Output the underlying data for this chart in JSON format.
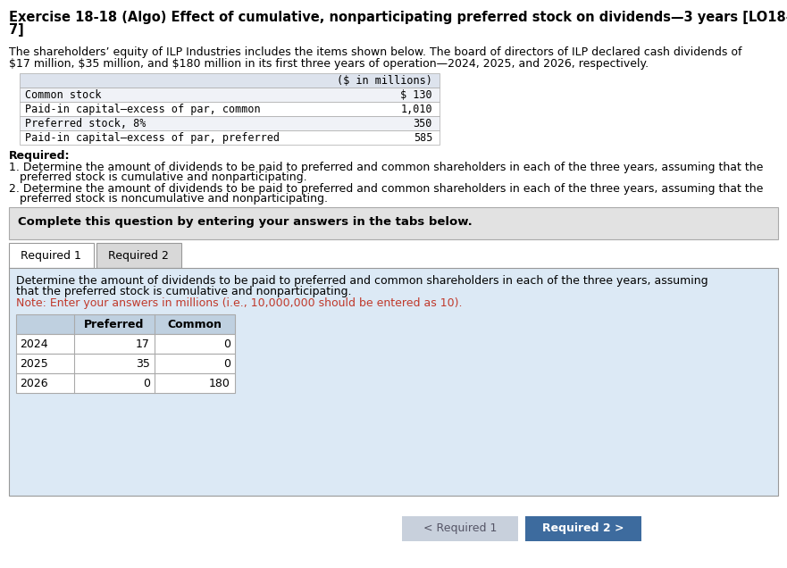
{
  "title_line1": "Exercise 18-18 (Algo) Effect of cumulative, nonparticipating preferred stock on dividends—3 years [LO18-",
  "title_line2": "7]",
  "intro_line1": "The shareholders’ equity of ILP Industries includes the items shown below. The board of directors of ILP declared cash dividends of",
  "intro_line2": "$17 million, $35 million, and $180 million in its first three years of operation—2024, 2025, and 2026, respectively.",
  "equity_header": "($ in millions)",
  "equity_rows": [
    [
      "Common stock",
      "$ 130"
    ],
    [
      "Paid-in capital–excess of par, common",
      "1,010"
    ],
    [
      "Preferred stock, 8%",
      "350"
    ],
    [
      "Paid-in capital–excess of par, preferred",
      "585"
    ]
  ],
  "required_label": "Required:",
  "req1_line1": "1. Determine the amount of dividends to be paid to preferred and common shareholders in each of the three years, assuming that the",
  "req1_line2": "   preferred stock is cumulative and nonparticipating.",
  "req2_line1": "2. Determine the amount of dividends to be paid to preferred and common shareholders in each of the three years, assuming that the",
  "req2_line2": "   preferred stock is noncumulative and nonparticipating.",
  "complete_text": "Complete this question by entering your answers in the tabs below.",
  "tab1_label": "Required 1",
  "tab2_label": "Required 2",
  "instr_line1": "Determine the amount of dividends to be paid to preferred and common shareholders in each of the three years, assuming",
  "instr_line2": "that the preferred stock is cumulative and nonparticipating.",
  "note_text": "Note: Enter your answers in millions (i.e., 10,000,000 should be entered as 10).",
  "dt_cols": [
    "",
    "Preferred",
    "Common"
  ],
  "dt_rows": [
    [
      "2024",
      "17",
      "0"
    ],
    [
      "2025",
      "35",
      "0"
    ],
    [
      "2026",
      "0",
      "180"
    ]
  ],
  "nav_prev": "< Required 1",
  "nav_next": "Required 2 >",
  "bg": "#ffffff",
  "equity_hdr_bg": "#dde3ed",
  "equity_row_bg": [
    "#f0f2f7",
    "#ffffff",
    "#f0f2f7",
    "#ffffff"
  ],
  "complete_bg": "#e2e2e2",
  "tab1_bg": "#ffffff",
  "tab2_bg": "#d8d8d8",
  "content_bg": "#dce9f5",
  "dt_hdr_bg": "#bfd0e0",
  "dt_row_bg": "#ffffff",
  "nav_prev_bg": "#c8d0dc",
  "nav_next_bg": "#3d6b9e",
  "note_color": "#c0392b",
  "border": "#aaaaaa",
  "tab_border": "#999999"
}
